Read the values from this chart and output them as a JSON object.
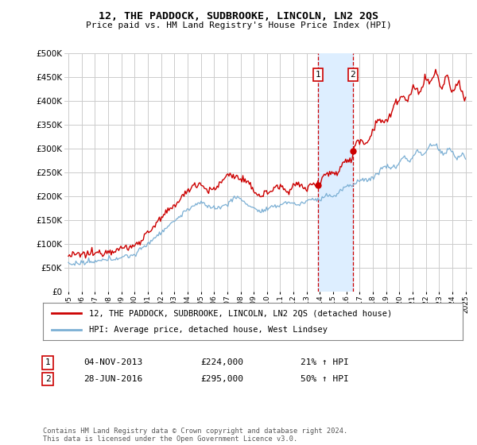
{
  "title": "12, THE PADDOCK, SUDBROOKE, LINCOLN, LN2 2QS",
  "subtitle": "Price paid vs. HM Land Registry's House Price Index (HPI)",
  "legend_property": "12, THE PADDOCK, SUDBROOKE, LINCOLN, LN2 2QS (detached house)",
  "legend_hpi": "HPI: Average price, detached house, West Lindsey",
  "sale1_date": "04-NOV-2013",
  "sale1_price": "£224,000",
  "sale1_hpi": "21% ↑ HPI",
  "sale1_year": 2013.84,
  "sale1_value": 224000,
  "sale2_date": "28-JUN-2016",
  "sale2_price": "£295,000",
  "sale2_hpi": "50% ↑ HPI",
  "sale2_year": 2016.49,
  "sale2_value": 295000,
  "footer": "Contains HM Land Registry data © Crown copyright and database right 2024.\nThis data is licensed under the Open Government Licence v3.0.",
  "property_color": "#cc0000",
  "hpi_color": "#7bafd4",
  "shade_color": "#ddeeff",
  "grid_color": "#cccccc",
  "background_color": "#ffffff",
  "ylim": [
    0,
    500000
  ],
  "yticks": [
    0,
    50000,
    100000,
    150000,
    200000,
    250000,
    300000,
    350000,
    400000,
    450000,
    500000
  ],
  "xlim_start": 1994.7,
  "xlim_end": 2025.5
}
